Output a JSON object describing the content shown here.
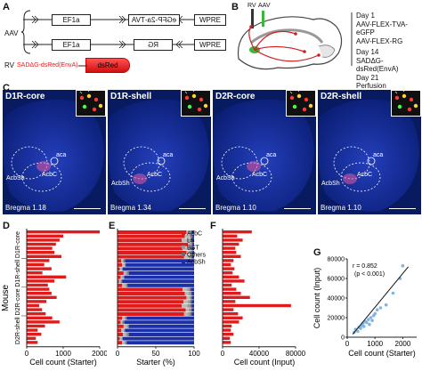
{
  "panels": {
    "A": "A",
    "B": "B",
    "C": "C",
    "D": "D",
    "E": "E",
    "F": "F",
    "G": "G"
  },
  "panel_a": {
    "aav_label": "AAV",
    "rv_label": "RV",
    "construct1": {
      "ef1a": "EF1a",
      "payload": "eGFP-2a-TVA",
      "wpre": "WPRE"
    },
    "construct2": {
      "ef1a": "EF1a",
      "payload": "RG",
      "wpre": "WPRE"
    },
    "rv_name": "SADΔG-dsRed(EnvA)",
    "rv_payload": "dsRed"
  },
  "panel_b": {
    "rv": "RV",
    "aav": "AAV",
    "timeline": [
      "Day 1",
      "AAV-FLEX-TVA-eGFP",
      "AAV-FLEX-RG",
      "Day 14",
      "SADΔG-dsRed(EnvA)",
      "Day 21",
      "Perfusion"
    ]
  },
  "panel_c": {
    "images": [
      {
        "title": "D1R-core",
        "bregma": "Bregma 1.18",
        "aca": "aca",
        "acbc": "AcbC",
        "acbsh": "AcbSh"
      },
      {
        "title": "D1R-shell",
        "bregma": "Bregma 1.34",
        "aca": "aca",
        "acbc": "AcbC",
        "acbsh": "AcbSh"
      },
      {
        "title": "D2R-core",
        "bregma": "Bregma 1.10",
        "aca": "aca",
        "acbc": "AcbC",
        "acbsh": "AcbSh"
      },
      {
        "title": "D2R-shell",
        "bregma": "Bregma 1.10",
        "aca": "aca",
        "acbc": "AcbC",
        "acbsh": "AcbSh"
      }
    ]
  },
  "colors": {
    "bar_red": "#e01b1b",
    "blue": "#1b2fa8",
    "gray": "#b9b9b9",
    "scatter": "#7fb4e6",
    "micro_bg": "#0a1d6b"
  },
  "chart_data": [
    {
      "type": "bar",
      "panel": "D",
      "orientation": "horizontal",
      "xlabel": "Cell count (Starter)",
      "ylabel": "Mouse",
      "xlim": [
        0,
        2000
      ],
      "xticks": [
        "0",
        "1000",
        "2000"
      ],
      "groups": [
        "D1R-core",
        "D1R-shell",
        "D2R-core",
        "D2R-shell"
      ],
      "values": [
        2000,
        1000,
        900,
        800,
        700,
        760,
        950,
        620,
        480,
        680,
        430,
        1080,
        760,
        580,
        620,
        680,
        820,
        540,
        340,
        420,
        520,
        700,
        900,
        500,
        300,
        400,
        250,
        300
      ]
    },
    {
      "type": "bar",
      "panel": "E",
      "orientation": "horizontal-stacked",
      "xlabel": "Starter (%)",
      "xlim": [
        0,
        100
      ],
      "xticks": [
        "0",
        "50",
        "100"
      ],
      "legend": [
        "AcbC",
        "LS",
        "BST",
        "Others",
        "AcbSh"
      ],
      "legend_colors": [
        "#e01b1b",
        "#b9b9b9",
        "#9a9a9a",
        "#6d6d6d",
        "#1b2fa8"
      ],
      "rows": [
        [
          90,
          4,
          2,
          1,
          3
        ],
        [
          88,
          6,
          2,
          2,
          2
        ],
        [
          86,
          5,
          4,
          2,
          3
        ],
        [
          92,
          3,
          2,
          1,
          2
        ],
        [
          85,
          7,
          3,
          2,
          3
        ],
        [
          90,
          4,
          2,
          2,
          2
        ],
        [
          87,
          6,
          3,
          1,
          3
        ],
        [
          5,
          2,
          1,
          2,
          90
        ],
        [
          6,
          3,
          1,
          1,
          89
        ],
        [
          3,
          2,
          1,
          1,
          93
        ],
        [
          8,
          3,
          2,
          2,
          85
        ],
        [
          4,
          2,
          2,
          1,
          91
        ],
        [
          2,
          2,
          1,
          1,
          94
        ],
        [
          6,
          4,
          2,
          1,
          87
        ],
        [
          85,
          6,
          3,
          2,
          4
        ],
        [
          88,
          5,
          3,
          1,
          3
        ],
        [
          90,
          4,
          2,
          1,
          3
        ],
        [
          86,
          6,
          3,
          2,
          3
        ],
        [
          84,
          7,
          4,
          2,
          3
        ],
        [
          89,
          4,
          3,
          1,
          3
        ],
        [
          87,
          5,
          3,
          2,
          3
        ],
        [
          6,
          3,
          2,
          1,
          88
        ],
        [
          4,
          2,
          1,
          2,
          91
        ],
        [
          8,
          4,
          2,
          1,
          85
        ],
        [
          5,
          3,
          1,
          1,
          90
        ],
        [
          7,
          4,
          2,
          2,
          85
        ],
        [
          3,
          2,
          1,
          1,
          93
        ],
        [
          6,
          3,
          2,
          1,
          88
        ]
      ]
    },
    {
      "type": "bar",
      "panel": "F",
      "orientation": "horizontal",
      "xlabel": "Cell count (Input)",
      "xlim": [
        0,
        80000
      ],
      "xticks": [
        "0",
        "40000",
        "80000"
      ],
      "values": [
        32000,
        16000,
        22000,
        18000,
        14000,
        15000,
        20000,
        12000,
        9000,
        13000,
        11000,
        18000,
        24000,
        10000,
        15000,
        20000,
        30000,
        14000,
        75000,
        12000,
        17000,
        22000,
        18000,
        10000,
        9000,
        12000,
        8000,
        9000
      ]
    },
    {
      "type": "scatter",
      "panel": "G",
      "xlabel": "Cell count (Starter)",
      "ylabel": "Cell count (Input)",
      "xlim": [
        0,
        2500
      ],
      "ylim": [
        0,
        80000
      ],
      "xticks": [
        "0",
        "1000",
        "2000"
      ],
      "yticks": [
        "0",
        "20000",
        "40000",
        "60000",
        "80000"
      ],
      "annotation": [
        "r = 0.852",
        "(p < 0.001)"
      ],
      "x": [
        250,
        300,
        380,
        420,
        480,
        520,
        560,
        600,
        650,
        700,
        760,
        800,
        850,
        900,
        950,
        1000,
        1080,
        1200,
        1400,
        1650,
        1900,
        2000
      ],
      "y": [
        5000,
        8000,
        6000,
        10000,
        9000,
        12000,
        14000,
        11000,
        16000,
        15000,
        18000,
        13000,
        20000,
        17000,
        22000,
        24000,
        28000,
        30000,
        33000,
        45000,
        60000,
        73000
      ],
      "fit": [
        [
          200,
          3000
        ],
        [
          2200,
          72000
        ]
      ]
    }
  ]
}
